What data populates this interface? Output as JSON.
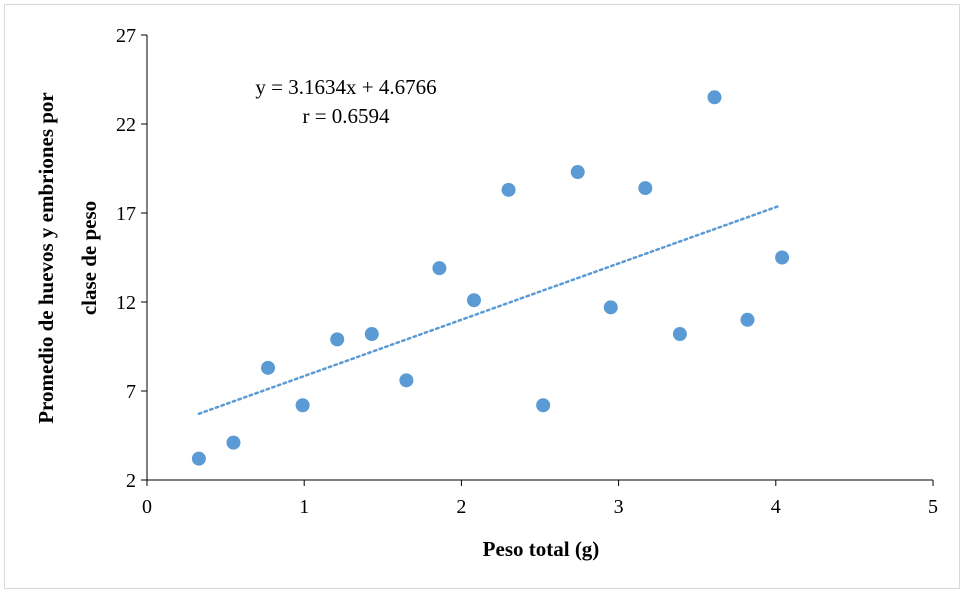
{
  "chart_data": {
    "type": "scatter",
    "xlabel": "Peso total (g)",
    "ylabel_lines": [
      "Promedio de huevos y embriones por",
      "clase de peso"
    ],
    "xlim": [
      0,
      5
    ],
    "ylim": [
      2,
      27
    ],
    "x_ticks": [
      "0",
      "1",
      "2",
      "3",
      "4",
      "5"
    ],
    "y_ticks": [
      "2",
      "7",
      "12",
      "17",
      "22",
      "27"
    ],
    "grid": false,
    "legend": "none",
    "annotations": [
      "y = 3.1634x + 4.6766",
      "r = 0.6594"
    ],
    "trendline": {
      "slope": 3.1634,
      "intercept": 4.6766,
      "x_range": [
        0.33,
        4.03
      ],
      "style": "dotted"
    },
    "colors": {
      "points": "#5b9bd5",
      "trendline": "#5b9bd5"
    },
    "points": [
      {
        "x": 0.33,
        "y": 3.2
      },
      {
        "x": 0.55,
        "y": 4.1
      },
      {
        "x": 0.77,
        "y": 8.3
      },
      {
        "x": 0.99,
        "y": 6.2
      },
      {
        "x": 1.21,
        "y": 9.9
      },
      {
        "x": 1.43,
        "y": 10.2
      },
      {
        "x": 1.65,
        "y": 7.6
      },
      {
        "x": 1.86,
        "y": 13.9
      },
      {
        "x": 2.08,
        "y": 12.1
      },
      {
        "x": 2.3,
        "y": 18.3
      },
      {
        "x": 2.52,
        "y": 6.2
      },
      {
        "x": 2.74,
        "y": 19.3
      },
      {
        "x": 2.95,
        "y": 11.7
      },
      {
        "x": 3.17,
        "y": 18.4
      },
      {
        "x": 3.39,
        "y": 10.2
      },
      {
        "x": 3.61,
        "y": 23.5
      },
      {
        "x": 3.82,
        "y": 11.0
      },
      {
        "x": 4.04,
        "y": 14.5
      }
    ]
  }
}
